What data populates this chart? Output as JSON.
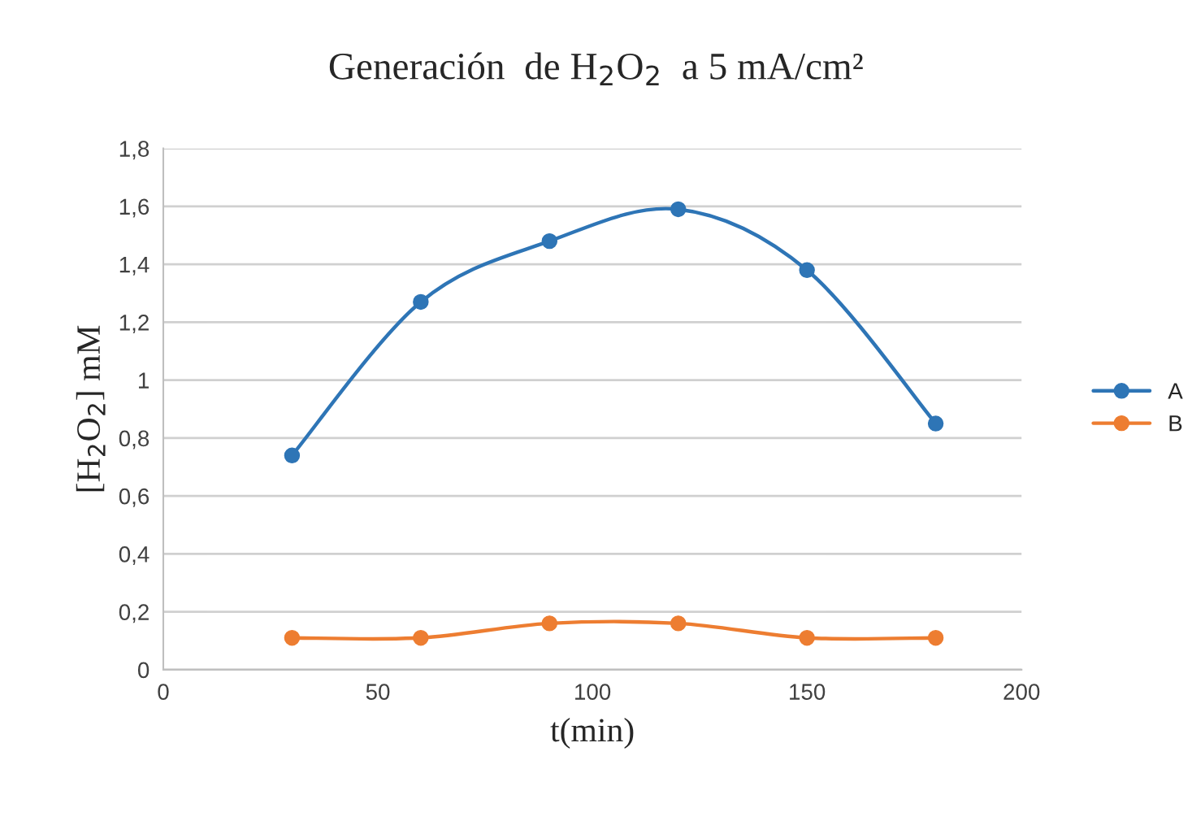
{
  "chart_data": {
    "type": "line",
    "title": "Generación  de H$_{2}$O$_{2}$  a 5 mA/cm²",
    "xlabel": "t(min)",
    "ylabel": "[H$_{2}$O$_{2}$] mM",
    "x": [
      30,
      60,
      90,
      120,
      150,
      180
    ],
    "series": [
      {
        "name": "A",
        "color": "#2e75b6",
        "values": [
          0.74,
          1.27,
          1.48,
          1.59,
          1.38,
          0.85
        ]
      },
      {
        "name": "B",
        "color": "#ed7d31",
        "values": [
          0.11,
          0.11,
          0.16,
          0.16,
          0.11,
          0.11
        ]
      }
    ],
    "xlim": [
      0,
      200
    ],
    "xticks": [
      0,
      50,
      100,
      150,
      200
    ],
    "ylim": [
      0,
      1.8
    ],
    "yticks": [
      0,
      {
        "value": 0.2,
        "label": "0,2"
      },
      {
        "value": 0.4,
        "label": "0,4"
      },
      {
        "value": 0.6,
        "label": "0,6"
      },
      {
        "value": 0.8,
        "label": "0,8"
      },
      1,
      {
        "value": 1.2,
        "label": "1,2"
      },
      {
        "value": 1.4,
        "label": "1,4"
      },
      {
        "value": 1.6,
        "label": "1,6"
      },
      {
        "value": 1.8,
        "label": "1,8"
      }
    ],
    "grid": "y",
    "legend": "right",
    "marker": "circle",
    "line_style": "solid"
  }
}
